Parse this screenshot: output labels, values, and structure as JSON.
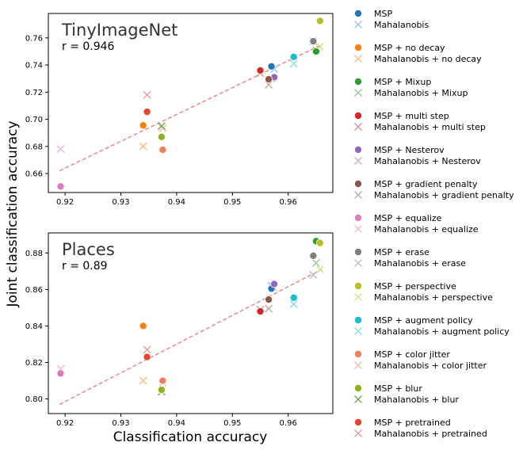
{
  "figure": {
    "xlabel": "Classification accuracy",
    "ylabel": "Joint classification accuracy"
  },
  "legend": {
    "placement": "right",
    "entries": [
      {
        "label": "MSP",
        "marker": "circle",
        "color": "#1f77b4"
      },
      {
        "label": "Mahalanobis",
        "marker": "x",
        "color": "#9ec6e4"
      },
      {
        "label": "MSP + no decay",
        "marker": "circle",
        "color": "#ff7f0e"
      },
      {
        "label": "Mahalanobis + no decay",
        "marker": "x",
        "color": "#ffbf86"
      },
      {
        "label": "MSP + Mixup",
        "marker": "circle",
        "color": "#2ca02c"
      },
      {
        "label": "Mahalanobis + Mixup",
        "marker": "x",
        "color": "#95cf95"
      },
      {
        "label": "MSP + multi step",
        "marker": "circle",
        "color": "#d62728"
      },
      {
        "label": "Mahalanobis + multi step",
        "marker": "x",
        "color": "#ea9293"
      },
      {
        "label": "MSP + Nesterov",
        "marker": "circle",
        "color": "#9467bd"
      },
      {
        "label": "Mahalanobis + Nesterov",
        "marker": "x",
        "color": "#c9b3de"
      },
      {
        "label": "MSP + gradient penalty",
        "marker": "circle",
        "color": "#8c564b"
      },
      {
        "label": "Mahalanobis + gradient penalty",
        "marker": "x",
        "color": "#c5aaa5"
      },
      {
        "label": "MSP + equalize",
        "marker": "circle",
        "color": "#e377c2"
      },
      {
        "label": "Mahalanobis + equalize",
        "marker": "x",
        "color": "#f1bbe0"
      },
      {
        "label": "MSP + erase",
        "marker": "circle",
        "color": "#7f7f7f"
      },
      {
        "label": "Mahalanobis + erase",
        "marker": "x",
        "color": "#bfbfbf"
      },
      {
        "label": "MSP + perspective",
        "marker": "circle",
        "color": "#bcbd22"
      },
      {
        "label": "Mahalanobis + perspective",
        "marker": "x",
        "color": "#dede91"
      },
      {
        "label": "MSP + augment policy",
        "marker": "circle",
        "color": "#17becf"
      },
      {
        "label": "Mahalanobis + augment policy",
        "marker": "x",
        "color": "#8bdee7"
      },
      {
        "label": "MSP + color jitter",
        "marker": "circle",
        "color": "#f07f5a"
      },
      {
        "label": "Mahalanobis + color jitter",
        "marker": "x",
        "color": "#f7bfac"
      },
      {
        "label": "MSP + blur",
        "marker": "circle",
        "color": "#8fb31d"
      },
      {
        "label": "Mahalanobis + blur",
        "marker": "x",
        "color": "#7aa84e"
      },
      {
        "label": "MSP + pretrained",
        "marker": "circle",
        "color": "#e8432d"
      },
      {
        "label": "Mahalanobis + pretrained",
        "marker": "x",
        "color": "#e0a39c"
      }
    ]
  },
  "chart_data": [
    {
      "type": "scatter",
      "title": "TinyImageNet",
      "annotation": "r = 0.946",
      "xlim": [
        0.917,
        0.968
      ],
      "ylim": [
        0.646,
        0.778
      ],
      "x_ticks": [
        0.92,
        0.93,
        0.94,
        0.95,
        0.96
      ],
      "x_tick_labels": [
        "0.92",
        "0.93",
        "0.94",
        "0.95",
        "0.96"
      ],
      "y_ticks": [
        0.66,
        0.68,
        0.7,
        0.72,
        0.74,
        0.76
      ],
      "y_tick_labels": [
        "0.66",
        "0.68",
        "0.70",
        "0.72",
        "0.74",
        "0.76"
      ],
      "grid": false,
      "trend_line": {
        "x": [
          0.919,
          0.966
        ],
        "y": [
          0.662,
          0.755
        ],
        "color": "#f08080",
        "style": "dashed"
      },
      "series": [
        {
          "name": "MSP",
          "marker": "circle",
          "color": "#1f77b4",
          "x": [
            0.957
          ],
          "y": [
            0.739
          ]
        },
        {
          "name": "Mahalanobis",
          "marker": "x",
          "color": "#9ec6e4",
          "x": [
            0.9575
          ],
          "y": [
            0.737
          ]
        },
        {
          "name": "MSP + no decay",
          "marker": "circle",
          "color": "#ff7f0e",
          "x": [
            0.934
          ],
          "y": [
            0.6955
          ]
        },
        {
          "name": "Mahalanobis + no decay",
          "marker": "x",
          "color": "#ffbf86",
          "x": [
            0.934
          ],
          "y": [
            0.68
          ]
        },
        {
          "name": "MSP + Mixup",
          "marker": "circle",
          "color": "#2ca02c",
          "x": [
            0.965
          ],
          "y": [
            0.75
          ]
        },
        {
          "name": "Mahalanobis + Mixup",
          "marker": "x",
          "color": "#95cf95",
          "x": [
            0.965
          ],
          "y": [
            0.751
          ]
        },
        {
          "name": "MSP + multi step",
          "marker": "circle",
          "color": "#d62728",
          "x": [
            0.955
          ],
          "y": [
            0.736
          ]
        },
        {
          "name": "Mahalanobis + multi step",
          "marker": "x",
          "color": "#ea9293",
          "x": [
            0.955
          ],
          "y": [
            0.734
          ]
        },
        {
          "name": "MSP + Nesterov",
          "marker": "circle",
          "color": "#9467bd",
          "x": [
            0.9575
          ],
          "y": [
            0.731
          ]
        },
        {
          "name": "Mahalanobis + Nesterov",
          "marker": "x",
          "color": "#c9b3de",
          "x": [
            0.957
          ],
          "y": [
            0.73
          ]
        },
        {
          "name": "MSP + gradient penalty",
          "marker": "circle",
          "color": "#8c564b",
          "x": [
            0.9565
          ],
          "y": [
            0.7295
          ]
        },
        {
          "name": "Mahalanobis + gradient penalty",
          "marker": "x",
          "color": "#c5aaa5",
          "x": [
            0.9565
          ],
          "y": [
            0.7255
          ]
        },
        {
          "name": "MSP + equalize",
          "marker": "circle",
          "color": "#e377c2",
          "x": [
            0.9192
          ],
          "y": [
            0.6505
          ]
        },
        {
          "name": "Mahalanobis + equalize",
          "marker": "x",
          "color": "#f1bbe0",
          "x": [
            0.9192
          ],
          "y": [
            0.678
          ]
        },
        {
          "name": "MSP + erase",
          "marker": "circle",
          "color": "#7f7f7f",
          "x": [
            0.9645
          ],
          "y": [
            0.7575
          ]
        },
        {
          "name": "Mahalanobis + erase",
          "marker": "x",
          "color": "#bfbfbf",
          "x": [
            0.9645
          ],
          "y": [
            0.7575
          ]
        },
        {
          "name": "MSP + perspective",
          "marker": "circle",
          "color": "#bcbd22",
          "x": [
            0.9657
          ],
          "y": [
            0.7725
          ]
        },
        {
          "name": "Mahalanobis + perspective",
          "marker": "x",
          "color": "#dede91",
          "x": [
            0.9657
          ],
          "y": [
            0.7535
          ]
        },
        {
          "name": "MSP + augment policy",
          "marker": "circle",
          "color": "#17becf",
          "x": [
            0.961
          ],
          "y": [
            0.746
          ]
        },
        {
          "name": "Mahalanobis + augment policy",
          "marker": "x",
          "color": "#8bdee7",
          "x": [
            0.961
          ],
          "y": [
            0.741
          ]
        },
        {
          "name": "MSP + color jitter",
          "marker": "circle",
          "color": "#f07f5a",
          "x": [
            0.9375
          ],
          "y": [
            0.6775
          ]
        },
        {
          "name": "Mahalanobis + color jitter",
          "marker": "x",
          "color": "#f7bfac",
          "x": [
            0.9375
          ],
          "y": [
            0.6935
          ]
        },
        {
          "name": "MSP + blur",
          "marker": "circle",
          "color": "#8fb31d",
          "x": [
            0.9373
          ],
          "y": [
            0.687
          ]
        },
        {
          "name": "Mahalanobis + blur",
          "marker": "x",
          "color": "#7aa84e",
          "x": [
            0.9373
          ],
          "y": [
            0.695
          ]
        },
        {
          "name": "MSP + pretrained",
          "marker": "circle",
          "color": "#e8432d",
          "x": [
            0.9347
          ],
          "y": [
            0.7055
          ]
        },
        {
          "name": "Mahalanobis + pretrained",
          "marker": "x",
          "color": "#e0a39c",
          "x": [
            0.9347
          ],
          "y": [
            0.718
          ]
        }
      ]
    },
    {
      "type": "scatter",
      "title": "Places",
      "annotation": "r = 0.89",
      "xlim": [
        0.917,
        0.968
      ],
      "ylim": [
        0.792,
        0.891
      ],
      "x_ticks": [
        0.92,
        0.93,
        0.94,
        0.95,
        0.96
      ],
      "x_tick_labels": [
        "0.92",
        "0.93",
        "0.94",
        "0.95",
        "0.96"
      ],
      "y_ticks": [
        0.8,
        0.82,
        0.84,
        0.86,
        0.88
      ],
      "y_tick_labels": [
        "0.80",
        "0.82",
        "0.84",
        "0.86",
        "0.88"
      ],
      "grid": false,
      "trend_line": {
        "x": [
          0.919,
          0.966
        ],
        "y": [
          0.797,
          0.871
        ],
        "color": "#f08080",
        "style": "dashed"
      },
      "series": [
        {
          "name": "MSP",
          "marker": "circle",
          "color": "#1f77b4",
          "x": [
            0.957
          ],
          "y": [
            0.8605
          ]
        },
        {
          "name": "Mahalanobis",
          "marker": "x",
          "color": "#9ec6e4",
          "x": [
            0.957
          ],
          "y": [
            0.862
          ]
        },
        {
          "name": "MSP + no decay",
          "marker": "circle",
          "color": "#ff7f0e",
          "x": [
            0.934
          ],
          "y": [
            0.84
          ]
        },
        {
          "name": "Mahalanobis + no decay",
          "marker": "x",
          "color": "#ffbf86",
          "x": [
            0.934
          ],
          "y": [
            0.81
          ]
        },
        {
          "name": "MSP + Mixup",
          "marker": "circle",
          "color": "#2ca02c",
          "x": [
            0.965
          ],
          "y": [
            0.8865
          ]
        },
        {
          "name": "Mahalanobis + Mixup",
          "marker": "x",
          "color": "#95cf95",
          "x": [
            0.965
          ],
          "y": [
            0.8745
          ]
        },
        {
          "name": "MSP + multi step",
          "marker": "circle",
          "color": "#d62728",
          "x": [
            0.955
          ],
          "y": [
            0.848
          ]
        },
        {
          "name": "Mahalanobis + multi step",
          "marker": "x",
          "color": "#ea9293",
          "x": [
            0.955
          ],
          "y": [
            0.849
          ]
        },
        {
          "name": "MSP + Nesterov",
          "marker": "circle",
          "color": "#9467bd",
          "x": [
            0.9575
          ],
          "y": [
            0.863
          ]
        },
        {
          "name": "Mahalanobis + Nesterov",
          "marker": "x",
          "color": "#c9b3de",
          "x": [
            0.9573
          ],
          "y": [
            0.8615
          ]
        },
        {
          "name": "MSP + gradient penalty",
          "marker": "circle",
          "color": "#8c564b",
          "x": [
            0.9565
          ],
          "y": [
            0.8545
          ]
        },
        {
          "name": "Mahalanobis + gradient penalty",
          "marker": "x",
          "color": "#c5aaa5",
          "x": [
            0.9565
          ],
          "y": [
            0.8495
          ]
        },
        {
          "name": "MSP + equalize",
          "marker": "circle",
          "color": "#e377c2",
          "x": [
            0.9192
          ],
          "y": [
            0.814
          ]
        },
        {
          "name": "Mahalanobis + equalize",
          "marker": "x",
          "color": "#f1bbe0",
          "x": [
            0.9192
          ],
          "y": [
            0.8165
          ]
        },
        {
          "name": "MSP + erase",
          "marker": "circle",
          "color": "#7f7f7f",
          "x": [
            0.9645
          ],
          "y": [
            0.8785
          ]
        },
        {
          "name": "Mahalanobis + erase",
          "marker": "x",
          "color": "#bfbfbf",
          "x": [
            0.9645
          ],
          "y": [
            0.868
          ]
        },
        {
          "name": "MSP + perspective",
          "marker": "circle",
          "color": "#bcbd22",
          "x": [
            0.9657
          ],
          "y": [
            0.8855
          ]
        },
        {
          "name": "Mahalanobis + perspective",
          "marker": "x",
          "color": "#dede91",
          "x": [
            0.9657
          ],
          "y": [
            0.871
          ]
        },
        {
          "name": "MSP + augment policy",
          "marker": "circle",
          "color": "#17becf",
          "x": [
            0.961
          ],
          "y": [
            0.8555
          ]
        },
        {
          "name": "Mahalanobis + augment policy",
          "marker": "x",
          "color": "#8bdee7",
          "x": [
            0.961
          ],
          "y": [
            0.852
          ]
        },
        {
          "name": "MSP + color jitter",
          "marker": "circle",
          "color": "#f07f5a",
          "x": [
            0.9375
          ],
          "y": [
            0.81
          ]
        },
        {
          "name": "Mahalanobis + color jitter",
          "marker": "x",
          "color": "#f7bfac",
          "x": [
            0.9375
          ],
          "y": [
            0.809
          ]
        },
        {
          "name": "MSP + blur",
          "marker": "circle",
          "color": "#8fb31d",
          "x": [
            0.9373
          ],
          "y": [
            0.805
          ]
        },
        {
          "name": "Mahalanobis + blur",
          "marker": "x",
          "color": "#7aa84e",
          "x": [
            0.9373
          ],
          "y": [
            0.804
          ]
        },
        {
          "name": "MSP + pretrained",
          "marker": "circle",
          "color": "#e8432d",
          "x": [
            0.9347
          ],
          "y": [
            0.823
          ]
        },
        {
          "name": "Mahalanobis + pretrained",
          "marker": "x",
          "color": "#e0a39c",
          "x": [
            0.9347
          ],
          "y": [
            0.827
          ]
        }
      ]
    }
  ]
}
